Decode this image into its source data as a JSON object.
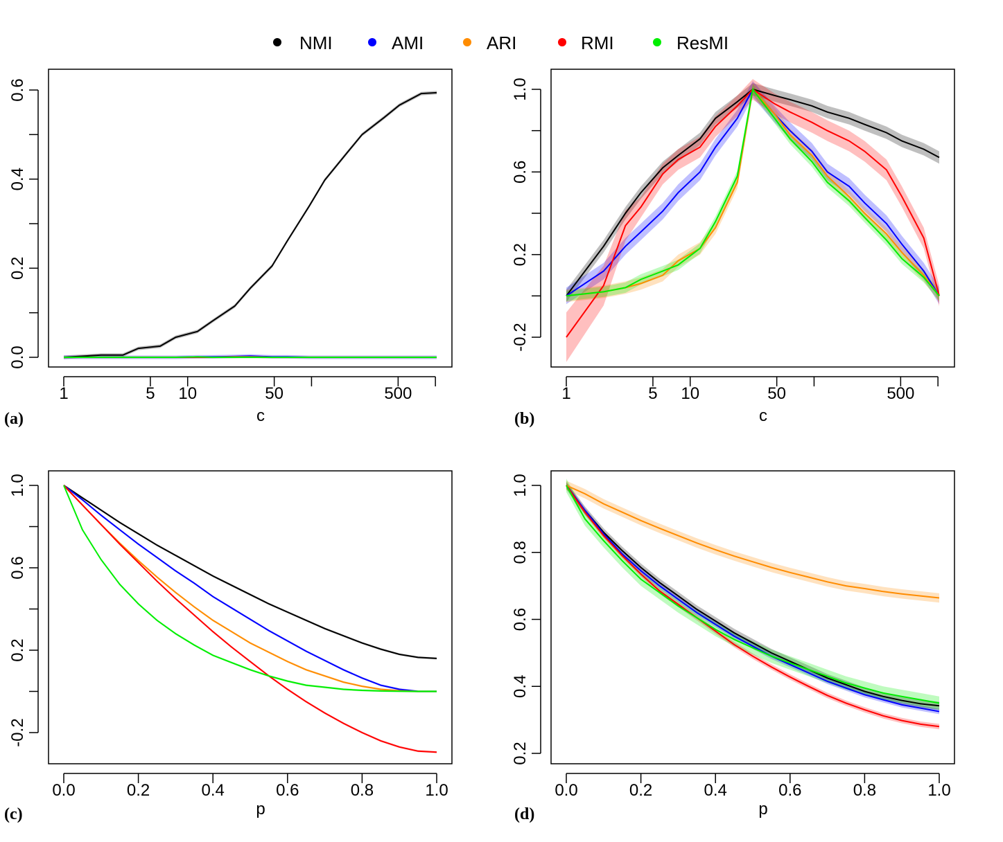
{
  "legend": {
    "items": [
      {
        "label": "NMI",
        "color": "#000000"
      },
      {
        "label": "AMI",
        "color": "#0000ff"
      },
      {
        "label": "ARI",
        "color": "#ff8c00"
      },
      {
        "label": "RMI",
        "color": "#ff0000"
      },
      {
        "label": "ResMI",
        "color": "#00ee00"
      }
    ]
  },
  "chart_data": [
    {
      "panel_label": "(a)",
      "type": "line",
      "xscale": "log",
      "xlabel": "c",
      "ylabel": "",
      "xlim": [
        1,
        1500
      ],
      "ylim": [
        0,
        0.6
      ],
      "xticks": [
        1,
        5,
        10,
        50,
        100,
        500,
        1000
      ],
      "xtick_labels": [
        "1",
        "5",
        "10",
        "50",
        "",
        "500",
        ""
      ],
      "yticks": [
        0,
        0.1,
        0.2,
        0.3,
        0.4,
        0.5,
        0.6
      ],
      "ytick_labels": [
        "0.0",
        "",
        "0.2",
        "",
        "0.4",
        "",
        "0.6"
      ],
      "x": [
        1,
        2,
        3,
        4,
        6,
        8,
        12,
        16,
        24,
        32,
        48,
        64,
        96,
        128,
        192,
        256,
        384,
        512,
        768,
        1024
      ],
      "series": [
        {
          "name": "NMI",
          "values": [
            0.0,
            0.005,
            0.005,
            0.02,
            0.025,
            0.045,
            0.058,
            0.082,
            0.115,
            0.155,
            0.205,
            0.262,
            0.34,
            0.398,
            0.458,
            0.5,
            0.538,
            0.566,
            0.592,
            0.594
          ],
          "band": 0.004
        },
        {
          "name": "AMI",
          "values": [
            0,
            0,
            0,
            0,
            0,
            0,
            0.001,
            0.001,
            0.002,
            0.003,
            0.001,
            0.001,
            0,
            0,
            0,
            0,
            0,
            0,
            0,
            0
          ],
          "band": 0.004
        },
        {
          "name": "ARI",
          "values": [
            0,
            0,
            0,
            0,
            0,
            0,
            0,
            0,
            0.001,
            0.001,
            0,
            0,
            0,
            0,
            0,
            0,
            0,
            0,
            0,
            0
          ],
          "band": 0.002
        },
        {
          "name": "RMI",
          "values": [
            0,
            0,
            0,
            0,
            0,
            0,
            0,
            0,
            0,
            0,
            0,
            0,
            0,
            0,
            0,
            0,
            0,
            0,
            0,
            0
          ],
          "band": 0.002
        },
        {
          "name": "ResMI",
          "values": [
            0,
            0,
            0,
            0,
            0,
            0,
            0.001,
            0,
            0,
            0,
            0,
            0,
            0,
            0,
            0,
            0,
            0,
            0,
            0,
            0
          ],
          "band": 0.002
        }
      ]
    },
    {
      "panel_label": "(b)",
      "type": "line",
      "xscale": "log",
      "xlabel": "c",
      "ylabel": "",
      "xlim": [
        1,
        1500
      ],
      "ylim": [
        -0.3,
        1.0
      ],
      "xticks": [
        1,
        5,
        10,
        50,
        100,
        500,
        1000
      ],
      "xtick_labels": [
        "1",
        "5",
        "10",
        "50",
        "",
        "500",
        ""
      ],
      "yticks": [
        -0.2,
        0,
        0.2,
        0.4,
        0.6,
        0.8,
        1.0
      ],
      "ytick_labels": [
        "-0.2",
        "",
        "0.2",
        "",
        "0.6",
        "",
        "1.0"
      ],
      "x": [
        1,
        2,
        3,
        4,
        6,
        8,
        12,
        16,
        24,
        32,
        48,
        64,
        96,
        128,
        192,
        256,
        384,
        512,
        768,
        1024
      ],
      "series": [
        {
          "name": "NMI",
          "values": [
            0.0,
            0.24,
            0.4,
            0.5,
            0.62,
            0.68,
            0.76,
            0.86,
            0.94,
            1.0,
            0.97,
            0.95,
            0.92,
            0.89,
            0.86,
            0.83,
            0.79,
            0.75,
            0.71,
            0.67
          ],
          "band": 0.03
        },
        {
          "name": "AMI",
          "values": [
            0.0,
            0.12,
            0.24,
            0.31,
            0.41,
            0.5,
            0.6,
            0.72,
            0.86,
            1.0,
            0.88,
            0.8,
            0.7,
            0.6,
            0.53,
            0.45,
            0.35,
            0.25,
            0.12,
            0.0
          ],
          "band": 0.04
        },
        {
          "name": "ARI",
          "values": [
            0.0,
            0.02,
            0.04,
            0.06,
            0.1,
            0.17,
            0.23,
            0.33,
            0.55,
            1.0,
            0.88,
            0.78,
            0.68,
            0.58,
            0.48,
            0.4,
            0.3,
            0.21,
            0.1,
            0.0
          ],
          "band": 0.03
        },
        {
          "name": "RMI",
          "values": [
            -0.2,
            0.05,
            0.34,
            0.43,
            0.59,
            0.66,
            0.72,
            0.82,
            0.92,
            1.0,
            0.93,
            0.89,
            0.84,
            0.8,
            0.75,
            0.7,
            0.61,
            0.48,
            0.28,
            0.0
          ],
          "band": 0.05,
          "band_start": 0.12
        },
        {
          "name": "ResMI",
          "values": [
            0.0,
            0.02,
            0.04,
            0.08,
            0.12,
            0.15,
            0.23,
            0.36,
            0.58,
            1.0,
            0.86,
            0.76,
            0.65,
            0.55,
            0.46,
            0.38,
            0.27,
            0.18,
            0.09,
            0.0
          ],
          "band": 0.025
        }
      ]
    },
    {
      "panel_label": "(c)",
      "type": "line",
      "xscale": "linear",
      "xlabel": "p",
      "ylabel": "",
      "xlim": [
        0,
        1
      ],
      "ylim": [
        -0.35,
        1.0
      ],
      "xticks": [
        0,
        0.2,
        0.4,
        0.6,
        0.8,
        1.0
      ],
      "xtick_labels": [
        "0.0",
        "0.2",
        "0.4",
        "0.6",
        "0.8",
        "1.0"
      ],
      "yticks": [
        -0.2,
        0,
        0.2,
        0.4,
        0.6,
        0.8,
        1.0
      ],
      "ytick_labels": [
        "-0.2",
        "",
        "0.2",
        "",
        "0.6",
        "",
        "1.0"
      ],
      "x": [
        0,
        0.05,
        0.1,
        0.15,
        0.2,
        0.25,
        0.3,
        0.35,
        0.4,
        0.45,
        0.5,
        0.55,
        0.6,
        0.65,
        0.7,
        0.75,
        0.8,
        0.85,
        0.9,
        0.95,
        1.0
      ],
      "series": [
        {
          "name": "NMI",
          "values": [
            1.0,
            0.94,
            0.88,
            0.82,
            0.765,
            0.71,
            0.66,
            0.61,
            0.56,
            0.515,
            0.47,
            0.425,
            0.385,
            0.345,
            0.305,
            0.27,
            0.235,
            0.205,
            0.18,
            0.165,
            0.16
          ],
          "band": 0.005
        },
        {
          "name": "AMI",
          "values": [
            1.0,
            0.93,
            0.855,
            0.785,
            0.715,
            0.65,
            0.585,
            0.525,
            0.46,
            0.405,
            0.35,
            0.295,
            0.245,
            0.195,
            0.15,
            0.105,
            0.065,
            0.03,
            0.01,
            0.0,
            0.0
          ],
          "band": 0.005
        },
        {
          "name": "ARI",
          "values": [
            1.0,
            0.905,
            0.81,
            0.72,
            0.635,
            0.555,
            0.48,
            0.41,
            0.345,
            0.29,
            0.235,
            0.19,
            0.145,
            0.105,
            0.075,
            0.045,
            0.025,
            0.01,
            0.003,
            0.0,
            0.0
          ],
          "band": 0.005
        },
        {
          "name": "RMI",
          "values": [
            1.0,
            0.905,
            0.81,
            0.715,
            0.625,
            0.535,
            0.45,
            0.37,
            0.29,
            0.215,
            0.145,
            0.075,
            0.01,
            -0.05,
            -0.105,
            -0.155,
            -0.2,
            -0.24,
            -0.27,
            -0.29,
            -0.295
          ],
          "band": 0.005
        },
        {
          "name": "ResMI",
          "values": [
            1.0,
            0.785,
            0.64,
            0.52,
            0.425,
            0.345,
            0.28,
            0.225,
            0.175,
            0.14,
            0.105,
            0.075,
            0.05,
            0.03,
            0.02,
            0.01,
            0.005,
            0.002,
            0.001,
            0.0,
            0.0
          ],
          "band": 0.005
        }
      ]
    },
    {
      "panel_label": "(d)",
      "type": "line",
      "xscale": "linear",
      "xlabel": "p",
      "ylabel": "",
      "xlim": [
        0,
        1
      ],
      "ylim": [
        0.17,
        1.0
      ],
      "xticks": [
        0,
        0.2,
        0.4,
        0.6,
        0.8,
        1.0
      ],
      "xtick_labels": [
        "0.0",
        "0.2",
        "0.4",
        "0.6",
        "0.8",
        "1.0"
      ],
      "yticks": [
        0.2,
        0.4,
        0.6,
        0.8,
        1.0
      ],
      "ytick_labels": [
        "0.2",
        "0.4",
        "0.6",
        "0.8",
        "1.0"
      ],
      "x": [
        0,
        0.05,
        0.1,
        0.15,
        0.2,
        0.25,
        0.3,
        0.35,
        0.4,
        0.45,
        0.5,
        0.55,
        0.6,
        0.65,
        0.7,
        0.75,
        0.8,
        0.85,
        0.9,
        0.95,
        1.0
      ],
      "series": [
        {
          "name": "NMI",
          "values": [
            1.0,
            0.925,
            0.86,
            0.805,
            0.755,
            0.71,
            0.67,
            0.63,
            0.595,
            0.56,
            0.53,
            0.5,
            0.475,
            0.45,
            0.425,
            0.405,
            0.385,
            0.37,
            0.358,
            0.348,
            0.342
          ],
          "band": 0.012
        },
        {
          "name": "AMI",
          "values": [
            1.0,
            0.925,
            0.855,
            0.795,
            0.745,
            0.7,
            0.66,
            0.62,
            0.585,
            0.55,
            0.52,
            0.49,
            0.465,
            0.44,
            0.415,
            0.395,
            0.375,
            0.36,
            0.345,
            0.335,
            0.325
          ],
          "band": 0.008
        },
        {
          "name": "ARI",
          "values": [
            1.0,
            0.975,
            0.945,
            0.92,
            0.895,
            0.872,
            0.85,
            0.828,
            0.808,
            0.789,
            0.772,
            0.755,
            0.74,
            0.726,
            0.712,
            0.7,
            0.692,
            0.683,
            0.676,
            0.67,
            0.664
          ],
          "band": 0.014
        },
        {
          "name": "RMI",
          "values": [
            1.0,
            0.92,
            0.85,
            0.79,
            0.735,
            0.685,
            0.645,
            0.605,
            0.565,
            0.525,
            0.49,
            0.458,
            0.428,
            0.4,
            0.373,
            0.35,
            0.33,
            0.312,
            0.298,
            0.287,
            0.28
          ],
          "band": 0.008
        },
        {
          "name": "ResMI",
          "values": [
            1.0,
            0.9,
            0.835,
            0.775,
            0.72,
            0.68,
            0.64,
            0.605,
            0.57,
            0.54,
            0.515,
            0.49,
            0.47,
            0.45,
            0.43,
            0.41,
            0.395,
            0.38,
            0.37,
            0.36,
            0.35
          ],
          "band": 0.02
        }
      ]
    }
  ]
}
